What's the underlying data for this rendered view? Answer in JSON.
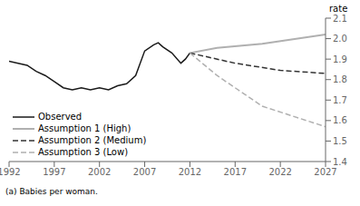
{
  "chart_data": {
    "type": "line",
    "ylabel": "rate",
    "footnote": "(a) Babies per woman.",
    "xlim": [
      1992,
      2027
    ],
    "xticks": [
      1992,
      1997,
      2002,
      2007,
      2012,
      2017,
      2022,
      2027
    ],
    "ylim": [
      1.4,
      2.1
    ],
    "yticks": [
      1.4,
      1.5,
      1.6,
      1.7,
      1.8,
      1.9,
      {
        "value": 2.0,
        "label": "2.0"
      },
      2.1
    ],
    "grid": false,
    "legend": "lower left",
    "series": [
      {
        "name": "Observed",
        "color": "#1a1a1a",
        "line_style": "solid",
        "x": [
          1992,
          1993,
          1994,
          1995,
          1996,
          1997,
          1998,
          1999,
          2000,
          2001,
          2002,
          2003,
          2004,
          2005,
          2006,
          2007,
          2008,
          2008.5,
          2009,
          2010,
          2011,
          2011.5,
          2012
        ],
        "values": [
          1.89,
          1.88,
          1.87,
          1.84,
          1.82,
          1.79,
          1.76,
          1.75,
          1.76,
          1.75,
          1.76,
          1.75,
          1.77,
          1.78,
          1.82,
          1.94,
          1.97,
          1.98,
          1.96,
          1.93,
          1.88,
          1.9,
          1.93
        ]
      },
      {
        "name": "Assumption 1 (High)",
        "color": "#b0b0b0",
        "line_style": "solid",
        "x": [
          2012,
          2015,
          2020,
          2027
        ],
        "values": [
          1.93,
          1.955,
          1.975,
          2.02
        ]
      },
      {
        "name": "Assumption 2 (Medium)",
        "color": "#333333",
        "line_style": "dashed",
        "x": [
          2012,
          2017,
          2022,
          2027
        ],
        "values": [
          1.93,
          1.88,
          1.845,
          1.83
        ]
      },
      {
        "name": "Assumption 3 (Low)",
        "color": "#b0b0b0",
        "line_style": "dashed",
        "x": [
          2012,
          2015,
          2020,
          2027
        ],
        "values": [
          1.93,
          1.82,
          1.67,
          1.57
        ]
      }
    ]
  }
}
